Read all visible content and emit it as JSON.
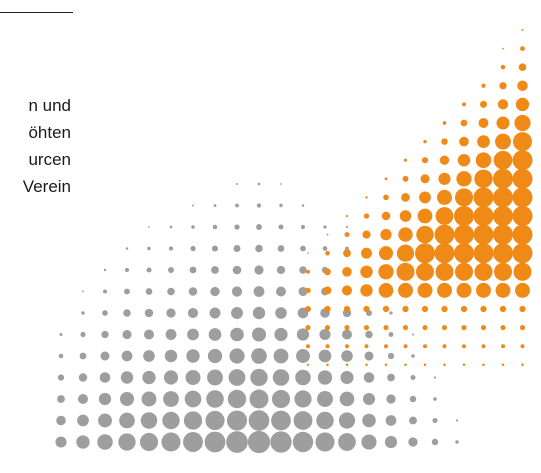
{
  "text_lines": [
    "n und",
    "öhten",
    "urcen",
    "Verein"
  ],
  "graphic": {
    "name": "halftone-dot-pattern",
    "colors": {
      "gray": "#9e9e9e",
      "orange": "#ef8a17"
    }
  }
}
